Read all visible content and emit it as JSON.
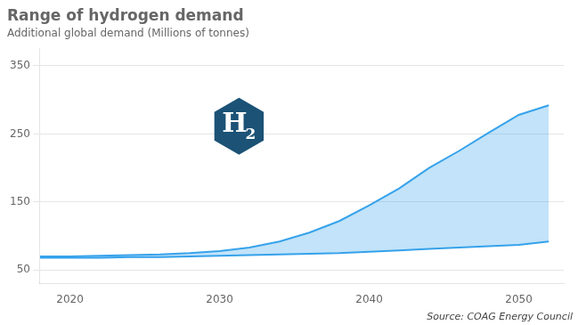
{
  "chart_data": {
    "type": "area",
    "title": "Range of hydrogen demand",
    "subtitle": "Additional global demand (Millions of tonnes)",
    "source": "Source: COAG Energy Council",
    "annotations": [
      "H",
      "2"
    ],
    "x": [
      2018,
      2020,
      2022,
      2024,
      2026,
      2028,
      2030,
      2032,
      2034,
      2036,
      2038,
      2040,
      2042,
      2044,
      2046,
      2048,
      2050,
      2052
    ],
    "series": [
      {
        "values": [
          70,
          70,
          71,
          72,
          73,
          75,
          78,
          83,
          92,
          105,
          122,
          145,
          170,
          200,
          225,
          252,
          278,
          292
        ]
      },
      {
        "values": [
          68,
          68,
          68,
          69,
          69,
          70,
          71,
          72,
          73,
          74,
          75,
          77,
          79,
          81,
          83,
          85,
          87,
          92
        ]
      }
    ],
    "xlim": [
      2018,
      2053
    ],
    "xticks": [
      2020,
      2030,
      2040,
      2050
    ],
    "ylim": [
      30,
      375
    ],
    "yticks": [
      50,
      150,
      250,
      350
    ],
    "grid": true
  }
}
